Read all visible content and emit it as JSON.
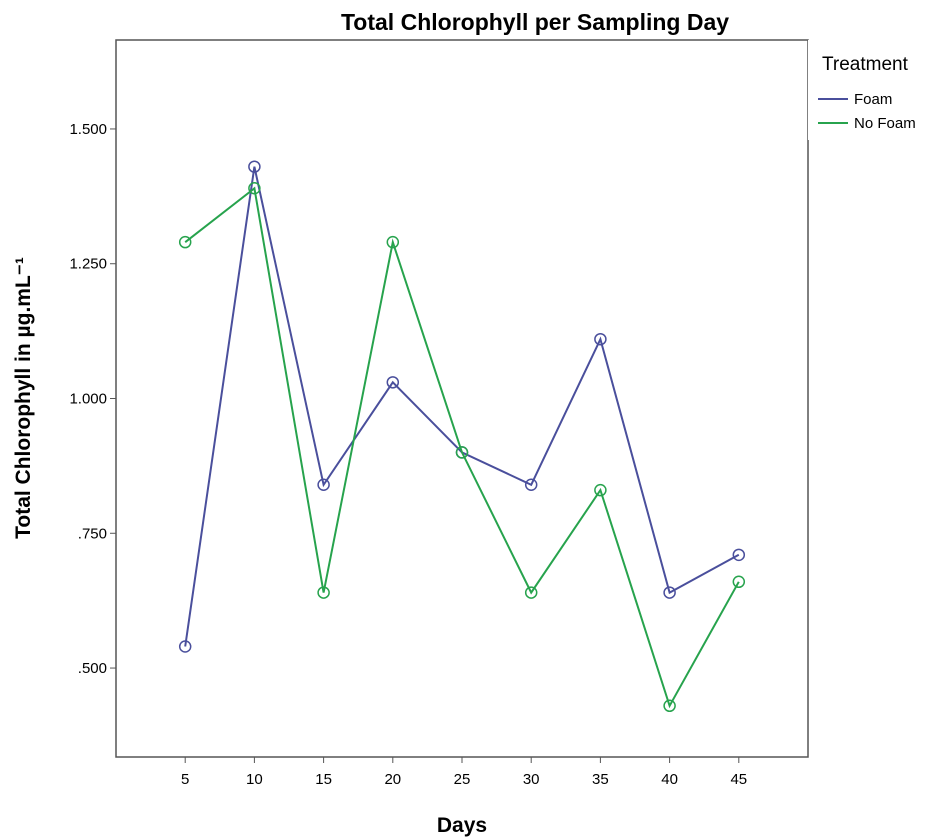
{
  "chart_data": {
    "type": "line",
    "title": "Total Chlorophyll per Sampling Day",
    "xlabel": "Days",
    "ylabel": "Total Chlorophyll in µg.mL⁻¹",
    "x": [
      5,
      10,
      15,
      20,
      25,
      30,
      35,
      40,
      45
    ],
    "xlim": [
      0,
      50
    ],
    "ylim": [
      0.335,
      1.665
    ],
    "x_ticks": [
      "5",
      "10",
      "15",
      "20",
      "25",
      "30",
      "35",
      "40",
      "45"
    ],
    "y_ticks": [
      {
        "value": 0.5,
        "label": ".500"
      },
      {
        "value": 0.75,
        "label": ".750"
      },
      {
        "value": 1.0,
        "label": "1.000"
      },
      {
        "value": 1.25,
        "label": "1.250"
      },
      {
        "value": 1.5,
        "label": "1.500"
      }
    ],
    "grid": false,
    "legend": {
      "title": "Treatment",
      "position": "top-right"
    },
    "series": [
      {
        "name": "Foam",
        "color": "#4a4f9c",
        "values": [
          0.54,
          1.43,
          0.84,
          1.03,
          0.9,
          0.84,
          1.11,
          0.64,
          0.71
        ]
      },
      {
        "name": "No Foam",
        "color": "#27a34d",
        "values": [
          1.29,
          1.39,
          0.64,
          1.29,
          0.9,
          0.64,
          0.83,
          0.43,
          0.66
        ]
      }
    ]
  }
}
